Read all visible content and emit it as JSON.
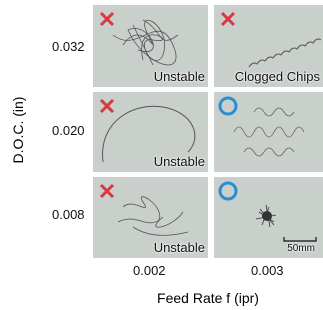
{
  "y_title": "D.O.C. (in)",
  "x_title": "Feed Rate f (ipr)",
  "rows": [
    "0.032",
    "0.020",
    "0.008"
  ],
  "columns": [
    "0.002",
    "0.003"
  ],
  "captions": [
    "Unstable",
    "Clogged Chips",
    "Unstable",
    "Unstable"
  ],
  "scale_bar": "50mm"
}
